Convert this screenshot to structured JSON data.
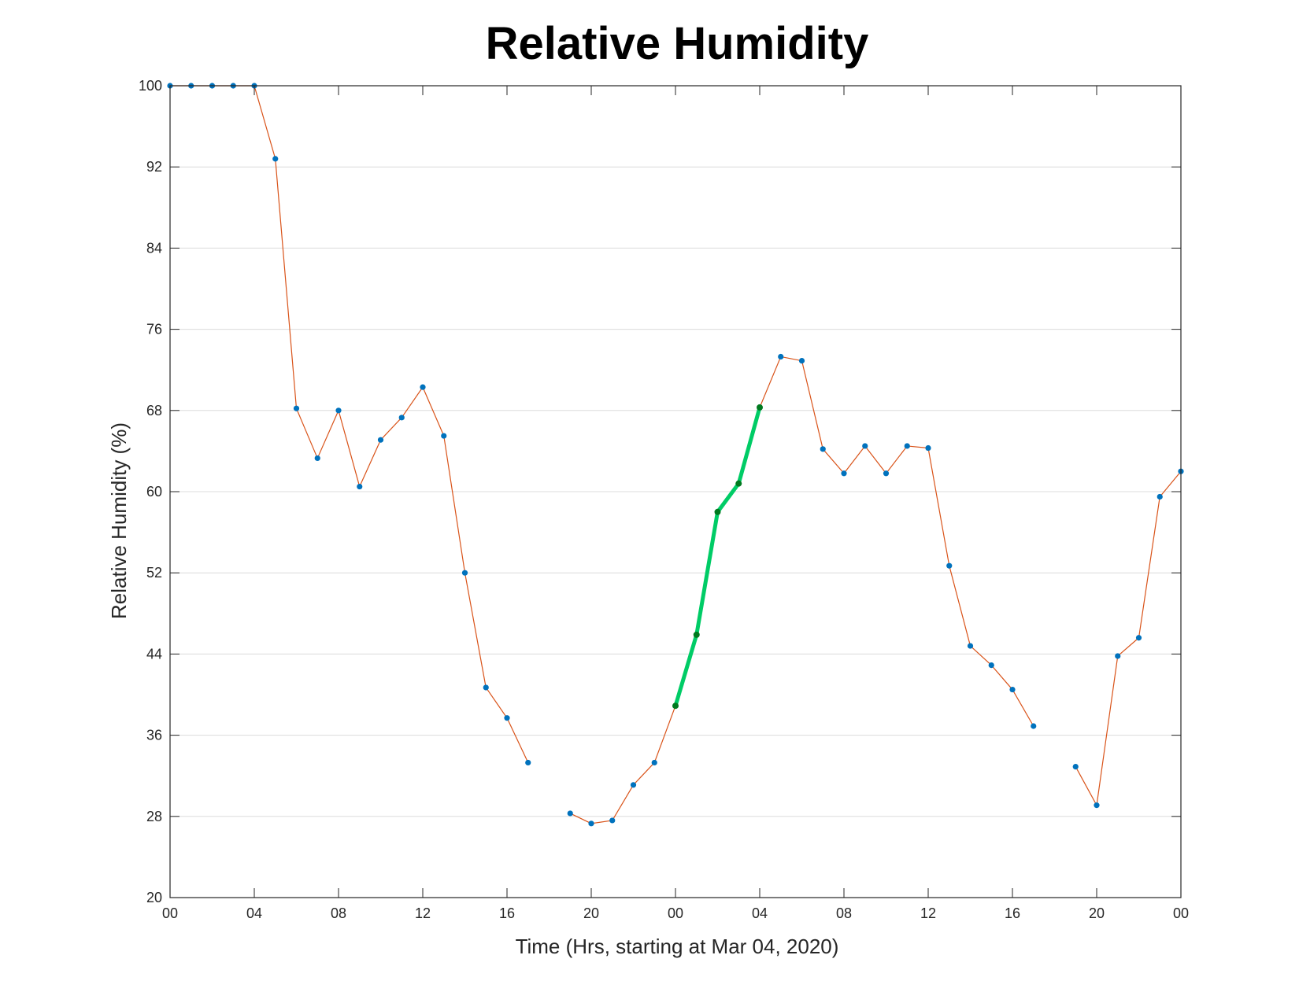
{
  "chart_data": {
    "type": "line",
    "title": "Relative Humidity",
    "xlabel": "Time (Hrs, starting at Mar 04, 2020)",
    "ylabel": "Relative Humidity (%)",
    "xlim": [
      0,
      48
    ],
    "ylim": [
      20,
      100
    ],
    "xticks": [
      0,
      4,
      8,
      12,
      16,
      20,
      24,
      28,
      32,
      36,
      40,
      44,
      48
    ],
    "xtick_labels": [
      "00",
      "04",
      "08",
      "12",
      "16",
      "20",
      "00",
      "04",
      "08",
      "12",
      "16",
      "20",
      "00"
    ],
    "yticks": [
      20,
      28,
      36,
      44,
      52,
      60,
      68,
      76,
      84,
      92,
      100
    ],
    "ytick_labels": [
      "20",
      "28",
      "36",
      "44",
      "52",
      "60",
      "68",
      "76",
      "84",
      "92",
      "100"
    ],
    "grid": "horizontal",
    "series": [
      {
        "line_color": "#d95319",
        "marker_color": "#0072bd",
        "x": [
          0,
          1,
          2,
          3,
          4,
          5,
          6,
          7,
          8,
          9,
          10,
          11,
          12,
          13,
          14,
          15,
          16,
          17,
          18,
          19,
          20,
          21,
          22,
          23,
          24,
          25,
          26,
          27,
          28,
          29,
          30,
          31,
          32,
          33,
          34,
          35,
          36,
          37,
          38,
          39,
          40,
          41,
          42,
          43,
          44,
          45,
          46,
          47,
          48
        ],
        "y": [
          100,
          100,
          100,
          100,
          100,
          92.8,
          68.2,
          63.3,
          68.0,
          60.5,
          65.1,
          67.3,
          70.3,
          65.5,
          52.0,
          40.7,
          37.7,
          33.3,
          null,
          28.3,
          27.3,
          27.6,
          31.1,
          33.3,
          38.9,
          45.9,
          58.0,
          60.8,
          68.3,
          73.3,
          72.9,
          64.2,
          61.8,
          64.5,
          61.8,
          64.5,
          64.3,
          52.7,
          44.8,
          42.9,
          40.5,
          36.9,
          null,
          32.9,
          29.1,
          43.8,
          45.6,
          59.5,
          62.0
        ]
      },
      {
        "line_color": "#00cc66",
        "marker_color": "#007a1f",
        "x": [
          24,
          25,
          26,
          27,
          28
        ],
        "y": [
          38.9,
          45.9,
          58.0,
          60.8,
          68.3
        ]
      }
    ]
  }
}
